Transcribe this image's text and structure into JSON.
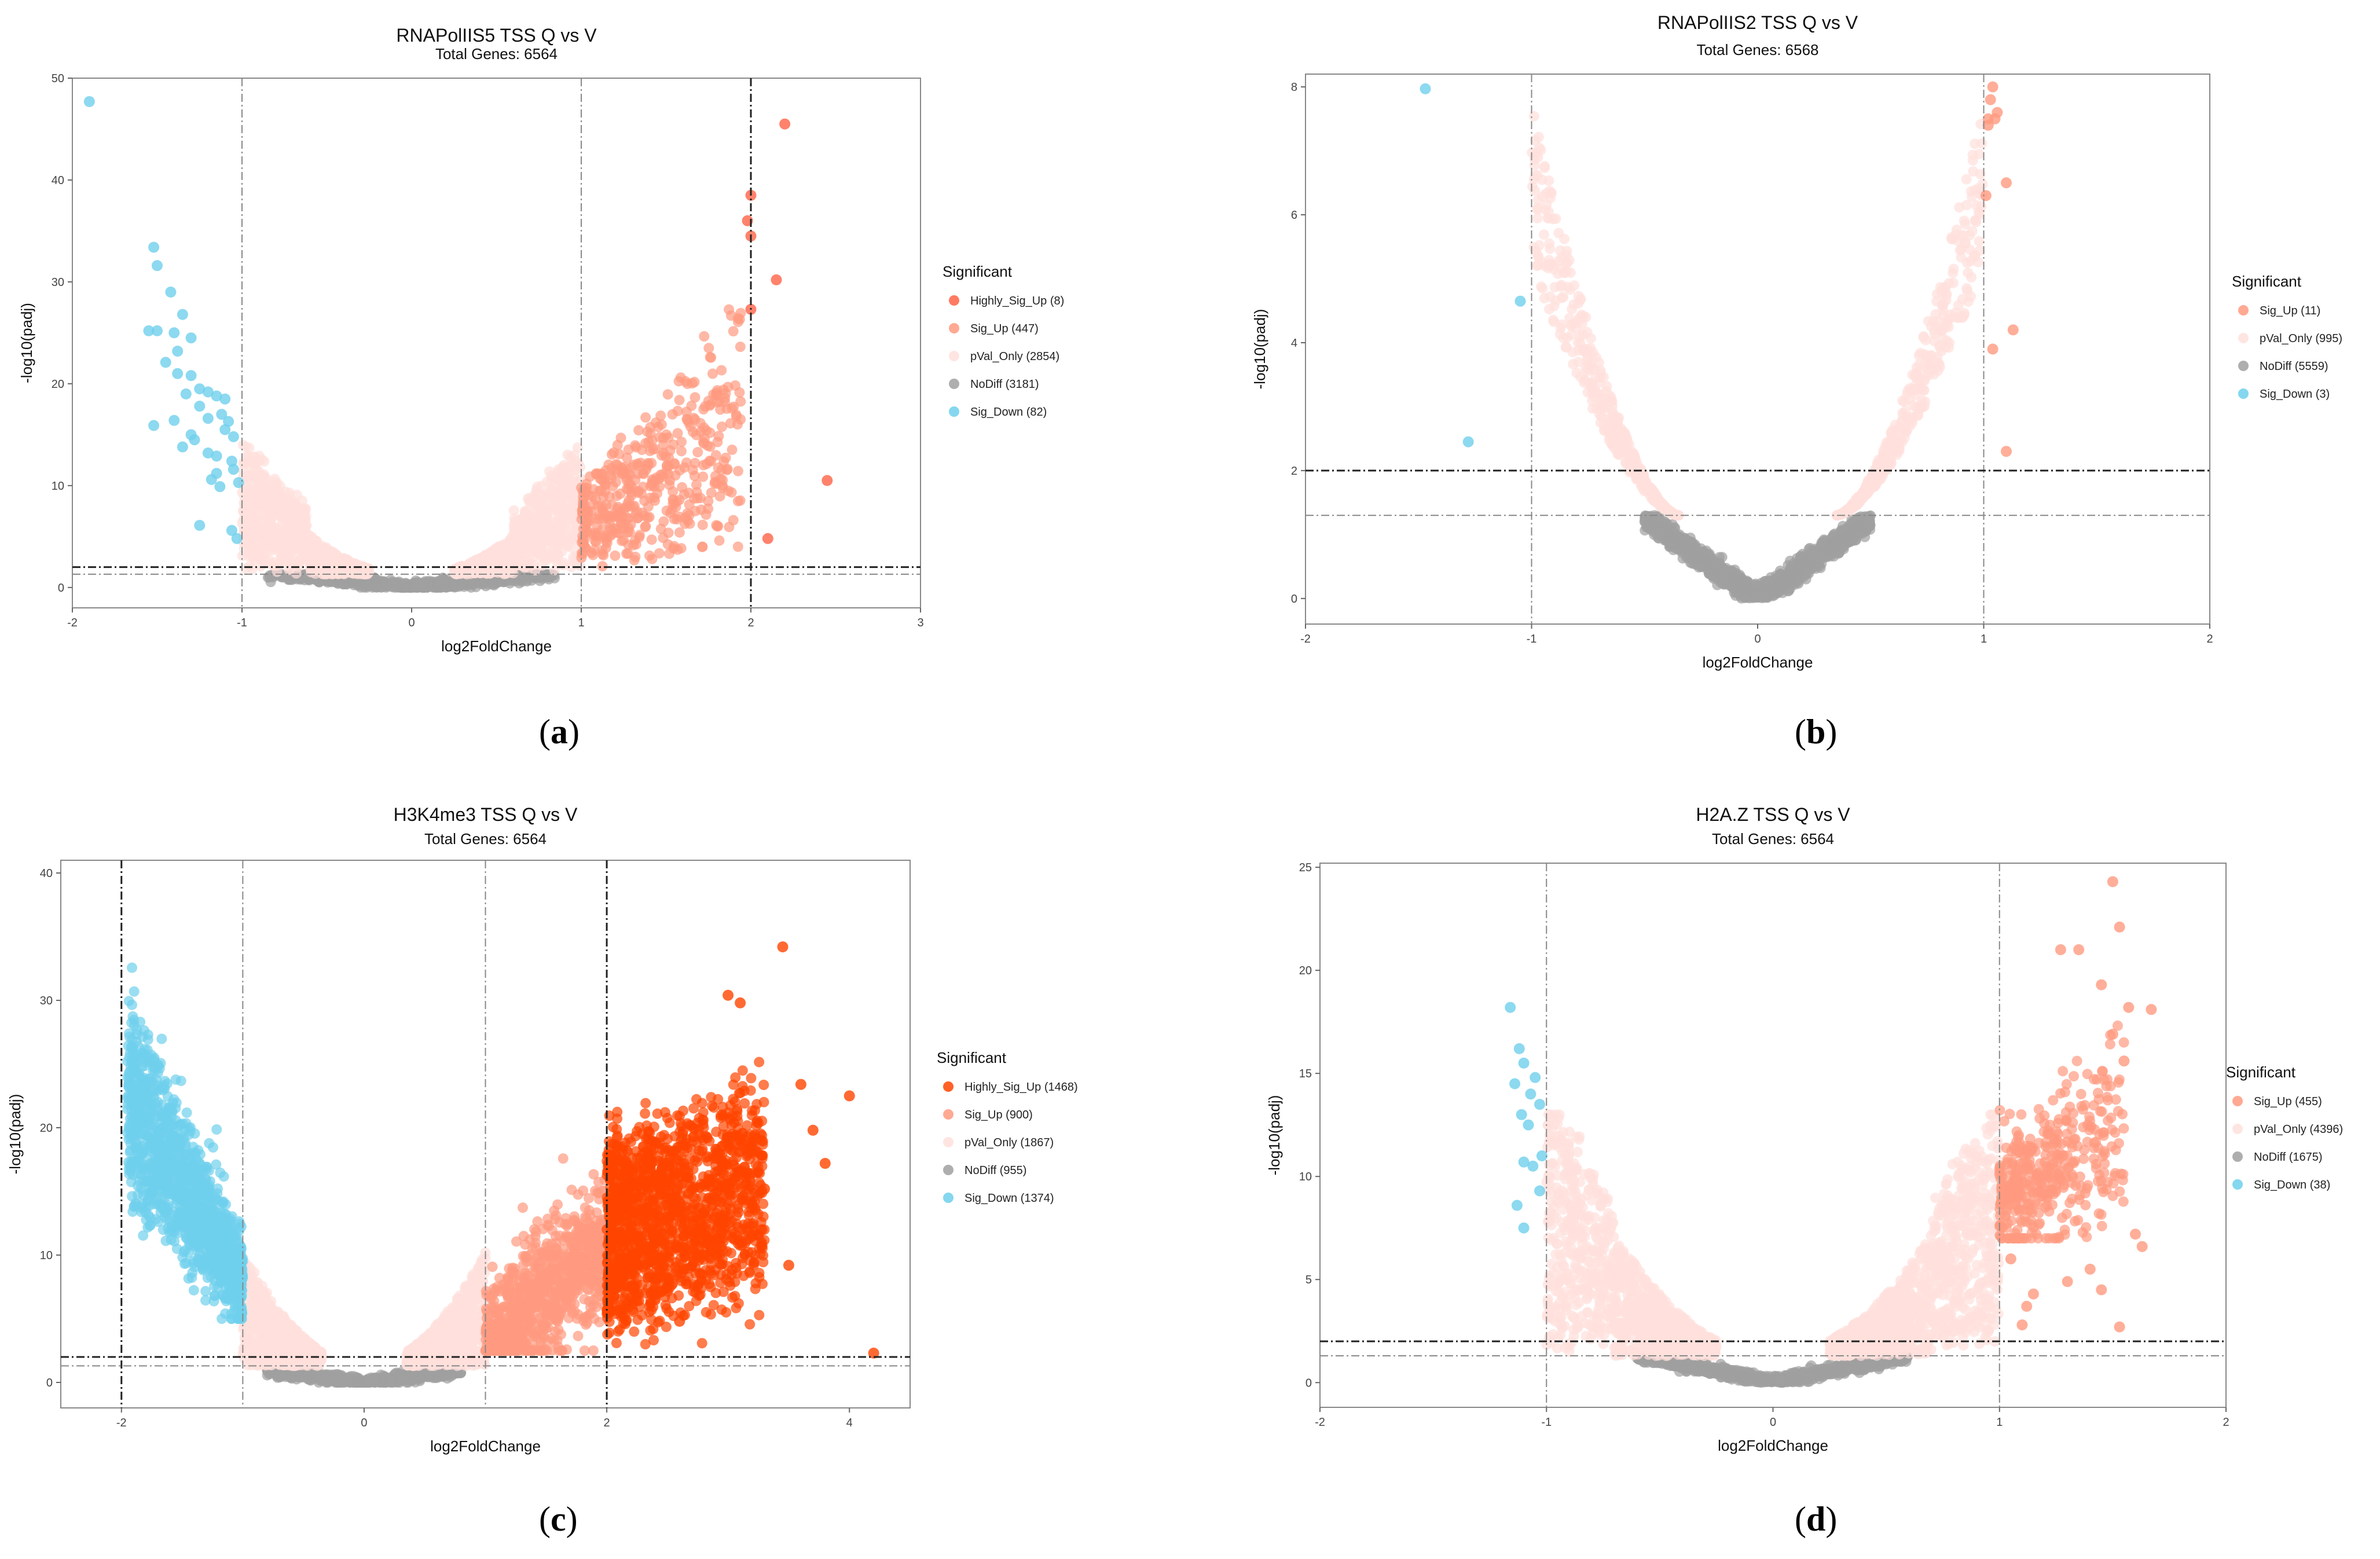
{
  "chart_data": [
    {
      "id": "a",
      "type": "scatter",
      "title": "RNAPolIIS5 TSS Q vs V",
      "subtitle": "Total Genes: 6564",
      "xlabel": "log2FoldChange",
      "ylabel": "-log10(padj)",
      "xlim": [
        -2,
        3
      ],
      "ylim": [
        -2,
        50
      ],
      "xticks": [
        -2,
        -1,
        0,
        1,
        2,
        3
      ],
      "yticks": [
        0,
        10,
        20,
        30,
        40,
        50
      ],
      "vlines_dotdash": [
        -1,
        1
      ],
      "vlines_black": [
        2
      ],
      "hline_black": 2,
      "hline_grey": 1.3,
      "legend_title": "Significant",
      "legend": [
        {
          "label": "Highly_Sig_Up (8)",
          "color": "#FF6347"
        },
        {
          "label": "Sig_Up (447)",
          "color": "#FF9A80"
        },
        {
          "label": "pVal_Only (2854)",
          "color": "#FFE0DC"
        },
        {
          "label": "NoDiff (3181)",
          "color": "#A0A0A0"
        },
        {
          "label": "Sig_Down (82)",
          "color": "#6FD0EC"
        }
      ],
      "points": {
        "Highly_Sig_Up": [
          [
            2.2,
            45.5
          ],
          [
            2.0,
            38.5
          ],
          [
            2.0,
            34.5
          ],
          [
            2.15,
            30.2
          ],
          [
            2.0,
            27.3
          ],
          [
            2.45,
            10.5
          ],
          [
            2.1,
            4.8
          ],
          [
            1.98,
            36.0
          ]
        ],
        "Sig_Down": [
          [
            -1.9,
            47.7
          ],
          [
            -1.52,
            33.4
          ],
          [
            -1.5,
            31.6
          ],
          [
            -1.42,
            29.0
          ],
          [
            -1.55,
            25.2
          ],
          [
            -1.5,
            25.2
          ],
          [
            -1.4,
            25.0
          ],
          [
            -1.35,
            26.8
          ],
          [
            -1.3,
            24.5
          ],
          [
            -1.38,
            23.2
          ],
          [
            -1.45,
            22.1
          ],
          [
            -1.38,
            21.0
          ],
          [
            -1.3,
            20.8
          ],
          [
            -1.25,
            19.5
          ],
          [
            -1.33,
            19.0
          ],
          [
            -1.2,
            19.2
          ],
          [
            -1.15,
            18.8
          ],
          [
            -1.1,
            18.5
          ],
          [
            -1.52,
            15.9
          ],
          [
            -1.4,
            16.4
          ],
          [
            -1.35,
            13.8
          ],
          [
            -1.28,
            14.5
          ],
          [
            -1.2,
            13.2
          ],
          [
            -1.15,
            12.9
          ],
          [
            -1.12,
            17.0
          ],
          [
            -1.08,
            16.3
          ],
          [
            -1.05,
            14.8
          ],
          [
            -1.02,
            10.3
          ],
          [
            -1.05,
            11.6
          ],
          [
            -1.18,
            10.6
          ],
          [
            -1.13,
            9.9
          ],
          [
            -1.25,
            6.1
          ],
          [
            -1.06,
            5.6
          ],
          [
            -1.03,
            4.8
          ],
          [
            -1.2,
            16.6
          ],
          [
            -1.25,
            17.8
          ],
          [
            -1.1,
            15.5
          ],
          [
            -1.06,
            12.4
          ],
          [
            -1.3,
            15.0
          ],
          [
            -1.15,
            11.2
          ]
        ]
      }
    },
    {
      "id": "b",
      "type": "scatter",
      "title": "RNAPolIIS2 TSS Q vs V",
      "subtitle": "Total Genes: 6568",
      "xlabel": "log2FoldChange",
      "ylabel": "-log10(padj)",
      "xlim": [
        -2,
        2
      ],
      "ylim": [
        -0.4,
        8.2
      ],
      "xticks": [
        -2,
        -1,
        0,
        1,
        2
      ],
      "yticks": [
        0,
        2,
        4,
        6,
        8
      ],
      "vlines_dotdash": [
        -1,
        1
      ],
      "hline_black": 2,
      "hline_grey": 1.3,
      "legend_title": "Significant",
      "legend": [
        {
          "label": "Sig_Up (11)",
          "color": "#FF9A80"
        },
        {
          "label": "pVal_Only (995)",
          "color": "#FFE0DC"
        },
        {
          "label": "NoDiff (5559)",
          "color": "#A0A0A0"
        },
        {
          "label": "Sig_Down (3)",
          "color": "#6FD0EC"
        }
      ],
      "points": {
        "Sig_Up": [
          [
            1.04,
            8.0
          ],
          [
            1.02,
            7.5
          ],
          [
            1.05,
            7.5
          ],
          [
            1.1,
            6.5
          ],
          [
            1.01,
            6.3
          ],
          [
            1.04,
            3.9
          ],
          [
            1.13,
            4.2
          ],
          [
            1.1,
            2.3
          ],
          [
            1.02,
            7.4
          ],
          [
            1.06,
            7.6
          ],
          [
            1.03,
            7.8
          ]
        ],
        "Sig_Down": [
          [
            -1.47,
            7.97
          ],
          [
            -1.05,
            4.65
          ],
          [
            -1.28,
            2.45
          ]
        ]
      }
    },
    {
      "id": "c",
      "type": "scatter",
      "title": "H3K4me3 TSS Q vs V",
      "subtitle": "Total Genes: 6564",
      "xlabel": "log2FoldChange",
      "ylabel": "-log10(padj)",
      "xlim": [
        -2.5,
        4.5
      ],
      "ylim": [
        -2,
        41
      ],
      "xticks": [
        -2,
        0,
        2,
        4
      ],
      "yticks": [
        0,
        10,
        20,
        30,
        40
      ],
      "vlines_dotdash": [
        -1,
        1
      ],
      "vlines_black": [
        -2,
        2
      ],
      "hline_black": 2,
      "hline_grey": 1.3,
      "legend_title": "Significant",
      "legend": [
        {
          "label": "Highly_Sig_Up (1468)",
          "color": "#FF4500"
        },
        {
          "label": "Sig_Up (900)",
          "color": "#FF9A80"
        },
        {
          "label": "pVal_Only (1867)",
          "color": "#FFE0DC"
        },
        {
          "label": "NoDiff (955)",
          "color": "#A0A0A0"
        },
        {
          "label": "Sig_Down (1374)",
          "color": "#6FD0EC"
        }
      ],
      "points": {
        "Highly_Sig_Up": [
          [
            3.45,
            34.2
          ],
          [
            3.0,
            30.4
          ],
          [
            3.1,
            29.8
          ],
          [
            3.6,
            23.4
          ],
          [
            4.0,
            22.5
          ],
          [
            3.7,
            19.8
          ],
          [
            3.8,
            17.2
          ],
          [
            3.3,
            15.2
          ],
          [
            3.2,
            11.5
          ],
          [
            4.2,
            2.3
          ],
          [
            3.5,
            9.2
          ],
          [
            2.6,
            4.8
          ]
        ]
      }
    },
    {
      "id": "d",
      "type": "scatter",
      "title": "H2A.Z TSS Q vs V",
      "subtitle": "Total Genes: 6564",
      "xlabel": "log2FoldChange",
      "ylabel": "-log10(padj)",
      "xlim": [
        -2,
        2
      ],
      "ylim": [
        -1.2,
        25.2
      ],
      "xticks": [
        -2,
        -1,
        0,
        1,
        2
      ],
      "yticks": [
        0,
        5,
        10,
        15,
        20,
        25
      ],
      "vlines_dotdash": [
        -1,
        1
      ],
      "hline_black": 2,
      "hline_grey": 1.3,
      "legend_title": "Significant",
      "legend": [
        {
          "label": "Sig_Up (455)",
          "color": "#FF9A80"
        },
        {
          "label": "pVal_Only (4396)",
          "color": "#FFE0DC"
        },
        {
          "label": "NoDiff (1675)",
          "color": "#A0A0A0"
        },
        {
          "label": "Sig_Down (38)",
          "color": "#6FD0EC"
        }
      ],
      "points": {
        "Sig_Up": [
          [
            1.5,
            24.3
          ],
          [
            1.53,
            22.1
          ],
          [
            1.27,
            21.0
          ],
          [
            1.35,
            21.0
          ],
          [
            1.45,
            19.3
          ],
          [
            1.57,
            18.2
          ],
          [
            1.67,
            18.1
          ],
          [
            1.5,
            16.9
          ],
          [
            1.55,
            15.6
          ],
          [
            1.6,
            7.2
          ],
          [
            1.63,
            6.6
          ],
          [
            1.4,
            5.5
          ],
          [
            1.45,
            4.5
          ],
          [
            1.3,
            4.9
          ],
          [
            1.15,
            4.3
          ],
          [
            1.12,
            3.7
          ],
          [
            1.1,
            2.8
          ],
          [
            1.53,
            2.7
          ],
          [
            1.05,
            6.0
          ]
        ],
        "Sig_Down": [
          [
            -1.16,
            18.2
          ],
          [
            -1.12,
            16.2
          ],
          [
            -1.1,
            15.5
          ],
          [
            -1.05,
            14.8
          ],
          [
            -1.03,
            13.5
          ],
          [
            -1.08,
            12.5
          ],
          [
            -1.1,
            10.7
          ],
          [
            -1.06,
            10.5
          ],
          [
            -1.13,
            8.6
          ],
          [
            -1.1,
            7.5
          ],
          [
            -1.03,
            9.3
          ],
          [
            -1.14,
            14.5
          ],
          [
            -1.02,
            11.0
          ],
          [
            -1.07,
            14.0
          ],
          [
            -1.11,
            13.0
          ]
        ]
      }
    }
  ],
  "captions": {
    "a": "a",
    "b": "b",
    "c": "c",
    "d": "d"
  }
}
